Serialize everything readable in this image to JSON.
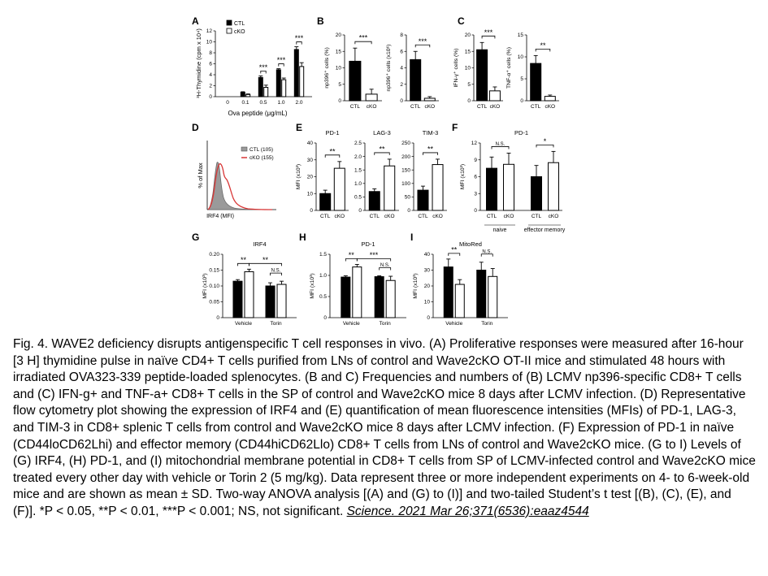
{
  "figure": {
    "panels": {
      "A": {
        "letter": "A",
        "ylabel": "³H-Thymidine (cpm x 10⁴)",
        "xlabel": "Ova peptide (μg/mL)",
        "legend": [
          "CTL",
          "cKO"
        ]
      },
      "B": {
        "letter": "B"
      },
      "C": {
        "letter": "C"
      },
      "D": {
        "letter": "D",
        "legend": [
          "CTL (105)",
          "cKO (155)"
        ],
        "ylabel": "% of Max",
        "xlabel": "IRF4 (MFI)"
      },
      "E": {
        "letter": "E"
      },
      "F": {
        "letter": "F",
        "groups": [
          "naive",
          "effector memory"
        ]
      },
      "G": {
        "letter": "G"
      },
      "H": {
        "letter": "H"
      },
      "I": {
        "letter": "I"
      }
    }
  },
  "chart_data": [
    {
      "id": "A",
      "type": "bar",
      "categories": [
        "0",
        "0.1",
        "0.5",
        "1.0",
        "2.0"
      ],
      "series": [
        {
          "name": "CTL",
          "values": [
            0,
            0.8,
            3.5,
            4.9,
            8.6
          ],
          "err": [
            0,
            0.1,
            0.3,
            0.2,
            0.5
          ]
        },
        {
          "name": "cKO",
          "values": [
            0,
            0.4,
            1.7,
            3.1,
            5.5
          ],
          "err": [
            0,
            0.1,
            0.4,
            0.3,
            0.7
          ]
        }
      ],
      "ylim": [
        0,
        12
      ],
      "yticks": [
        0,
        2,
        4,
        6,
        8,
        10,
        12
      ],
      "sig": [
        {
          "i": 2,
          "label": "***"
        },
        {
          "i": 3,
          "label": "***"
        },
        {
          "i": 4,
          "label": "***"
        }
      ]
    },
    {
      "id": "B1",
      "type": "bar",
      "categories": [
        "CTL",
        "cKO"
      ],
      "ylabel": "np396⁺ cells (%)",
      "values": [
        12,
        2
      ],
      "err": [
        4,
        1.5
      ],
      "ylim": [
        0,
        20
      ],
      "yticks": [
        0,
        5,
        10,
        15,
        20
      ],
      "sig": "***"
    },
    {
      "id": "B2",
      "type": "bar",
      "categories": [
        "CTL",
        "cKO"
      ],
      "ylabel": "np396⁺ cells (x10⁶)",
      "values": [
        5,
        0.3
      ],
      "err": [
        1,
        0.2
      ],
      "ylim": [
        0,
        8
      ],
      "yticks": [
        0,
        2,
        4,
        6,
        8
      ],
      "sig": "***"
    },
    {
      "id": "C1",
      "type": "bar",
      "categories": [
        "CTL",
        "cKO"
      ],
      "ylabel": "IFN-γ⁺ cells (%)",
      "values": [
        15.5,
        3
      ],
      "err": [
        2.2,
        1.2
      ],
      "ylim": [
        0,
        20
      ],
      "yticks": [
        0,
        5,
        10,
        15,
        20
      ],
      "sig": "***"
    },
    {
      "id": "C2",
      "type": "bar",
      "categories": [
        "CTL",
        "cKO"
      ],
      "ylabel": "TNF-α⁺ cells (%)",
      "values": [
        8.5,
        1
      ],
      "err": [
        1.8,
        0.3
      ],
      "ylim": [
        0,
        15
      ],
      "yticks": [
        0,
        5,
        10,
        15
      ],
      "sig": "**"
    },
    {
      "id": "E1",
      "type": "bar",
      "title": "PD-1",
      "ylabel": "MFI (x10³)",
      "categories": [
        "CTL",
        "cKO"
      ],
      "values": [
        10,
        25
      ],
      "err": [
        2,
        4
      ],
      "ylim": [
        0,
        40
      ],
      "yticks": [
        0,
        10,
        20,
        30,
        40
      ],
      "sig": "**"
    },
    {
      "id": "E2",
      "type": "bar",
      "title": "LAG-3",
      "categories": [
        "CTL",
        "cKO"
      ],
      "values": [
        0.7,
        1.65
      ],
      "err": [
        0.1,
        0.25
      ],
      "ylim": [
        0,
        2.5
      ],
      "yticks": [
        0,
        0.5,
        1.0,
        1.5,
        2.0,
        2.5
      ],
      "yticklabels": [
        "0",
        "0.5",
        "1.0",
        "1.5",
        "2.0",
        "2.5"
      ],
      "sig": "**"
    },
    {
      "id": "E3",
      "type": "bar",
      "title": "TIM-3",
      "categories": [
        "CTL",
        "cKO"
      ],
      "values": [
        75,
        170
      ],
      "err": [
        15,
        20
      ],
      "ylim": [
        0,
        250
      ],
      "yticks": [
        0,
        50,
        100,
        150,
        200,
        250
      ],
      "sig": "**"
    },
    {
      "id": "F",
      "type": "bar",
      "title": "PD-1",
      "ylabel": "MFI (x10³)",
      "categories": [
        "CTL",
        "cKO",
        "CTL",
        "cKO"
      ],
      "values": [
        7.5,
        8.2,
        6,
        8.5
      ],
      "err": [
        2,
        2,
        2,
        2
      ],
      "ylim": [
        0,
        12
      ],
      "yticks": [
        0,
        3,
        6,
        9,
        12
      ],
      "sig": [
        {
          "pair": [
            0,
            1
          ],
          "label": "N.S."
        },
        {
          "pair": [
            2,
            3
          ],
          "label": "*"
        }
      ]
    },
    {
      "id": "G",
      "type": "bar",
      "title": "IRF4",
      "ylabel": "MFI (x10³)",
      "categories": [
        "Vehicle",
        "Torin"
      ],
      "series": [
        {
          "name": "CTL",
          "values": [
            0.115,
            0.1
          ],
          "err": [
            0.005,
            0.01
          ]
        },
        {
          "name": "cKO",
          "values": [
            0.145,
            0.105
          ],
          "err": [
            0.008,
            0.01
          ]
        }
      ],
      "ylim": [
        0,
        0.2
      ],
      "yticks": [
        0,
        0.05,
        0.1,
        0.15,
        0.2
      ],
      "yticklabels": [
        "0",
        "0.05",
        "0.10",
        "0.15",
        "0.20"
      ],
      "sig": [
        {
          "from": 0,
          "to": 1,
          "label": "**"
        },
        {
          "from": 1,
          "to": 3,
          "label": "**"
        },
        {
          "from": 2,
          "to": 3,
          "label": "N.S."
        }
      ]
    },
    {
      "id": "H",
      "type": "bar",
      "title": "PD-1",
      "ylabel": "MFI (x10³)",
      "categories": [
        "Vehicle",
        "Torin"
      ],
      "series": [
        {
          "name": "CTL",
          "values": [
            0.96,
            0.97
          ],
          "err": [
            0.03,
            0.02
          ]
        },
        {
          "name": "cKO",
          "values": [
            1.2,
            0.88
          ],
          "err": [
            0.06,
            0.1
          ]
        }
      ],
      "ylim": [
        0,
        1.5
      ],
      "yticks": [
        0,
        0.5,
        1.0,
        1.5
      ],
      "yticklabels": [
        "0",
        "0.5",
        "1.0",
        "1.5"
      ],
      "sig": [
        {
          "from": 0,
          "to": 1,
          "label": "**"
        },
        {
          "from": 1,
          "to": 3,
          "label": "***"
        },
        {
          "from": 2,
          "to": 3,
          "label": "N.S."
        }
      ]
    },
    {
      "id": "I",
      "type": "bar",
      "title": "MitoRed",
      "ylabel": "MFI (x10³)",
      "categories": [
        "Vehicle",
        "Torin"
      ],
      "series": [
        {
          "name": "CTL",
          "values": [
            32,
            30
          ],
          "err": [
            5,
            5
          ]
        },
        {
          "name": "cKO",
          "values": [
            21,
            26
          ],
          "err": [
            3,
            5
          ]
        }
      ],
      "ylim": [
        0,
        40
      ],
      "yticks": [
        0,
        10,
        20,
        30,
        40
      ],
      "sig": [
        {
          "from": 0,
          "to": 1,
          "label": "**"
        },
        {
          "from": 2,
          "to": 3,
          "label": "N.S."
        }
      ]
    }
  ],
  "caption": {
    "text": "Fig. 4. WAVE2 deficiency disrupts antigenspecific T cell responses in vivo. (A) Proliferative responses were measured after 16-hour [3 H] thymidine pulse in naïve CD4+ T cells purified from LNs of control and Wave2cKO OT-II mice and stimulated 48 hours with irradiated OVA323-339 peptide-loaded splenocytes. (B and C) Frequencies and numbers of (B) LCMV np396-specific CD8+ T cells and (C) IFN-g+ and TNF-a+ CD8+ T cells in the SP of control and Wave2cKO mice 8 days after LCMV infection. (D) Representative flow cytometry plot showing the expression of IRF4 and (E) quantification of mean fluorescence intensities (MFIs) of PD-1, LAG-3, and TIM-3 in CD8+ splenic T cells from control and Wave2cKO mice 8 days after LCMV infection. (F) Expression of PD-1 in naïve (CD44loCD62Lhi) and effector memory (CD44hiCD62Llo) CD8+ T cells from LNs of control and Wave2cKO mice. (G to I) Levels of (G) IRF4, (H) PD-1, and (I) mitochondrial membrane potential in CD8+ T cells from SP of LCMV-infected control and Wave2cKO mice treated every other day with vehicle or Torin 2 (5 mg/kg). Data represent three or more independent experiments on 4- to 6-week-old mice and are shown as mean ± SD. Two-way ANOVA analysis [(A) and (G) to (I)] and two-tailed Student’s t test [(B), (C), (E), and (F)]. *P < 0.05, **P < 0.01, ***P < 0.001; NS, not significant. ",
    "citation": "Science.  2021 Mar 26;371(6536):eaaz4544"
  }
}
